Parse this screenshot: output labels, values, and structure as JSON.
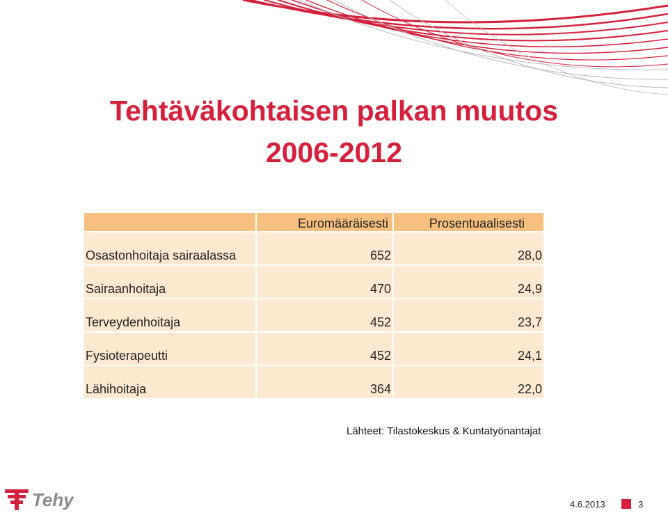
{
  "slide": {
    "title_line1": "Tehtäväkohtaisen palkan muutos",
    "title_line2": "2006-2012",
    "accent_color": "#d5203c"
  },
  "table": {
    "headers": [
      "",
      "Euromääräisesti",
      "Prosentuaalisesti"
    ],
    "rows": [
      {
        "label": "Osastonhoitaja sairaalassa",
        "euro": "652",
        "percent": "28,0"
      },
      {
        "label": "Sairaanhoitaja",
        "euro": "470",
        "percent": "24,9"
      },
      {
        "label": "Terveydenhoitaja",
        "euro": "452",
        "percent": "23,7"
      },
      {
        "label": "Fysioterapeutti",
        "euro": "452",
        "percent": "24,1"
      },
      {
        "label": "Lähihoitaja",
        "euro": "364",
        "percent": "22,0"
      }
    ]
  },
  "source": "Lähteet: Tilastokeskus & Kuntatyönantajat",
  "footer": {
    "logo_text": "Tehy",
    "date": "4.6.2013",
    "page": "3"
  }
}
